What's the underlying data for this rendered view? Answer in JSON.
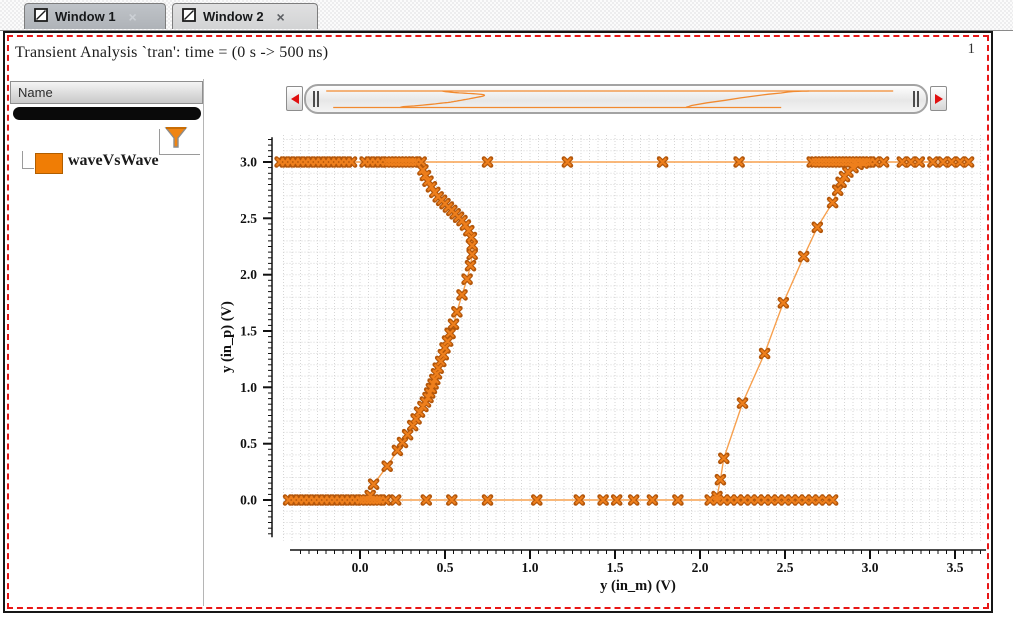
{
  "tabs": [
    {
      "label": "Window 1",
      "active": false
    },
    {
      "label": "Window 2",
      "active": true
    }
  ],
  "window": {
    "title": "Transient Analysis `tran': time = (0 s -> 500 ns)",
    "page_indicator": "1",
    "highlight_color": "#e81616"
  },
  "sidebar": {
    "header": "Name",
    "trace_color_bar": "#0a0a0a",
    "filter_icon_color": "#ef8413",
    "signal": {
      "label": "waveVsWave",
      "swatch_color": "#f07d05"
    }
  },
  "chart_data": {
    "type": "scatter",
    "title": "Transient Analysis `tran': time = (0 s -> 500 ns)",
    "xlabel": "y (in_m) (V)",
    "ylabel": "y (in_p) (V)",
    "xlim": [
      -0.52,
      3.68
    ],
    "ylim": [
      -0.44,
      3.25
    ],
    "x_ticks": [
      0.0,
      0.5,
      1.0,
      1.5,
      2.0,
      2.5,
      3.0,
      3.5
    ],
    "y_ticks": [
      0.0,
      0.5,
      1.0,
      1.5,
      2.0,
      2.5,
      3.0
    ],
    "grid": "dotted",
    "legend_position": "none",
    "series_name": "waveVsWave",
    "colors": {
      "marker": "#ee7f1c",
      "marker_edge": "#b3560a",
      "line": "#f7a04e"
    },
    "segments": {
      "top_line": {
        "y": 3.0,
        "xs": [
          -0.47,
          -0.44,
          -0.41,
          -0.38,
          -0.35,
          -0.32,
          -0.29,
          -0.26,
          -0.23,
          -0.2,
          -0.17,
          -0.14,
          -0.11,
          -0.08,
          -0.05,
          0.03,
          0.06,
          0.09,
          0.12,
          0.15,
          0.17,
          0.19,
          0.21,
          0.23,
          0.25,
          0.27,
          0.29,
          0.31,
          0.33,
          0.36,
          0.75,
          1.22,
          1.78,
          2.23,
          2.66,
          2.68,
          2.7,
          2.72,
          2.74,
          2.76,
          2.78,
          2.8,
          2.82,
          2.84,
          2.86,
          2.88,
          2.9,
          2.92,
          2.94,
          2.96,
          2.98,
          3.0,
          3.03,
          3.08,
          3.19,
          3.24,
          3.29,
          3.37,
          3.43,
          3.48,
          3.53,
          3.58
        ]
      },
      "bottom_line": {
        "y": 0.0,
        "xs": [
          -0.42,
          -0.39,
          -0.36,
          -0.33,
          -0.3,
          -0.27,
          -0.24,
          -0.21,
          -0.18,
          -0.15,
          -0.12,
          -0.09,
          -0.06,
          -0.03,
          0.0,
          0.02,
          0.04,
          0.06,
          0.08,
          0.1,
          0.12,
          0.15,
          0.21,
          0.39,
          0.54,
          0.75,
          1.04,
          1.29,
          1.43,
          1.51,
          1.61,
          1.72,
          1.87,
          2.06,
          2.1,
          2.14,
          2.18,
          2.22,
          2.26,
          2.3,
          2.34,
          2.38,
          2.42,
          2.46,
          2.5,
          2.54,
          2.58,
          2.62,
          2.66,
          2.7,
          2.74,
          2.78
        ]
      },
      "falling": [
        [
          0.36,
          3.0
        ],
        [
          0.37,
          2.93
        ],
        [
          0.385,
          2.88
        ],
        [
          0.4,
          2.83
        ],
        [
          0.42,
          2.78
        ],
        [
          0.44,
          2.73
        ],
        [
          0.46,
          2.69
        ],
        [
          0.48,
          2.66
        ],
        [
          0.5,
          2.63
        ],
        [
          0.52,
          2.6
        ],
        [
          0.54,
          2.57
        ],
        [
          0.56,
          2.54
        ],
        [
          0.58,
          2.51
        ],
        [
          0.6,
          2.48
        ],
        [
          0.62,
          2.44
        ],
        [
          0.64,
          2.39
        ],
        [
          0.655,
          2.33
        ],
        [
          0.66,
          2.26
        ],
        [
          0.66,
          2.18
        ],
        [
          0.65,
          2.08
        ],
        [
          0.63,
          1.96
        ],
        [
          0.6,
          1.82
        ],
        [
          0.57,
          1.67
        ],
        [
          0.55,
          1.56
        ],
        [
          0.53,
          1.48
        ],
        [
          0.515,
          1.41
        ],
        [
          0.5,
          1.35
        ],
        [
          0.49,
          1.29
        ],
        [
          0.475,
          1.23
        ],
        [
          0.46,
          1.17
        ],
        [
          0.45,
          1.12
        ],
        [
          0.44,
          1.07
        ],
        [
          0.43,
          1.03
        ],
        [
          0.42,
          0.99
        ],
        [
          0.41,
          0.95
        ],
        [
          0.4,
          0.91
        ],
        [
          0.385,
          0.87
        ],
        [
          0.37,
          0.83
        ],
        [
          0.35,
          0.78
        ],
        [
          0.33,
          0.72
        ],
        [
          0.31,
          0.66
        ],
        [
          0.28,
          0.58
        ],
        [
          0.25,
          0.51
        ],
        [
          0.22,
          0.44
        ],
        [
          0.16,
          0.3
        ],
        [
          0.08,
          0.14
        ],
        [
          0.06,
          0.04
        ]
      ],
      "rising": [
        [
          2.1,
          0.03
        ],
        [
          2.12,
          0.18
        ],
        [
          2.14,
          0.37
        ],
        [
          2.25,
          0.86
        ],
        [
          2.38,
          1.3
        ],
        [
          2.49,
          1.75
        ],
        [
          2.61,
          2.16
        ],
        [
          2.69,
          2.42
        ],
        [
          2.78,
          2.64
        ],
        [
          2.81,
          2.75
        ],
        [
          2.83,
          2.82
        ],
        [
          2.85,
          2.87
        ],
        [
          2.87,
          2.91
        ],
        [
          2.9,
          2.95
        ],
        [
          2.93,
          2.98
        ],
        [
          2.96,
          2.99
        ],
        [
          2.98,
          3.0
        ]
      ]
    }
  }
}
